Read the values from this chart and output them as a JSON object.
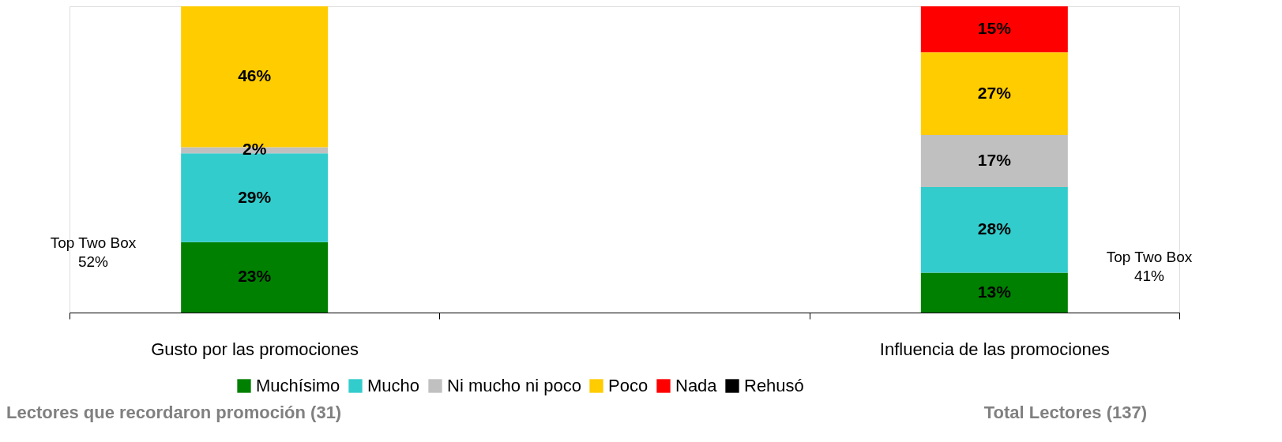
{
  "chart_data": {
    "type": "bar",
    "stacked": true,
    "categories": [
      "Gusto por las promociones",
      null,
      "Influencia de las promociones"
    ],
    "series": [
      {
        "name": "Muchísimo",
        "color": "#008000",
        "values": [
          23,
          null,
          13
        ],
        "value_labels": [
          "23%",
          null,
          "13%"
        ]
      },
      {
        "name": "Mucho",
        "color": "#33cccc",
        "values": [
          29,
          null,
          28
        ],
        "value_labels": [
          "29%",
          null,
          "28%"
        ]
      },
      {
        "name": "Ni mucho ni poco",
        "color": "#c0c0c0",
        "values": [
          2,
          null,
          17
        ],
        "value_labels": [
          "2%",
          null,
          "17%"
        ]
      },
      {
        "name": "Poco",
        "color": "#ffcc00",
        "values": [
          46,
          null,
          27
        ],
        "value_labels": [
          "46%",
          null,
          "27%"
        ]
      },
      {
        "name": "Nada",
        "color": "#ff0000",
        "values": [
          null,
          null,
          15
        ],
        "value_labels": [
          null,
          null,
          "15%"
        ]
      },
      {
        "name": "Rehusó",
        "color": "#000000",
        "values": [
          null,
          null,
          null
        ]
      }
    ],
    "annotations": [
      "Top Two Box\n52%",
      "Top Two Box\n41%",
      "Lectores que recordaron promoción  (31)",
      "Total Lectores (137)"
    ],
    "legend": "bottom"
  }
}
